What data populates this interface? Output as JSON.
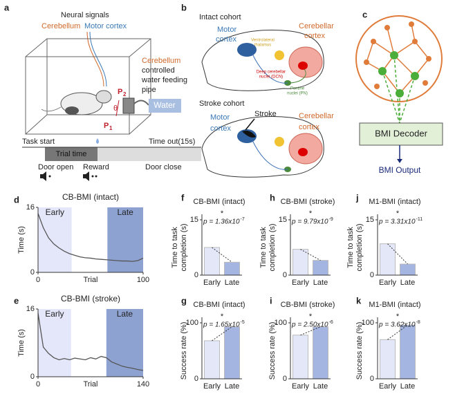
{
  "panels": {
    "a": {
      "label": "a",
      "neural_signals": "Neural signals",
      "cerebellum": "Cerebellum",
      "motor_cortex": "Motor cortex",
      "pipe_lines": [
        "Cerebellum",
        "controlled",
        "water feeding",
        "pipe"
      ],
      "p2": "P",
      "p2_sub": "2",
      "theta": "θ",
      "p1": "P",
      "p1_sub": "1",
      "water": "Water",
      "task_start": "Task start",
      "trial_time": "Trial time",
      "time_out": "Time out(15s)",
      "door_open": "Door open",
      "reward": "Reward",
      "door_close": "Door close"
    },
    "b": {
      "label": "b",
      "intact": "Intact cohort",
      "motor": [
        "Motor",
        "cortex"
      ],
      "cerebellar": [
        "Cerebellar",
        "cortex"
      ],
      "thalamus": [
        "Ventrolateral",
        "thalamus"
      ],
      "dcn": [
        "Deep cerebellar",
        "nuclei (DCN)"
      ],
      "pn": [
        "Pontine",
        "nuclei (PN)"
      ],
      "stroke_cohort": "Stroke cohort",
      "motor2": [
        "Motor",
        "cortex"
      ],
      "stroke": "Stroke",
      "cerebellar2": [
        "Cerebellar",
        "cortex"
      ]
    },
    "c": {
      "label": "c",
      "decoder": "BMI Decoder",
      "output": "BMI Output"
    }
  },
  "chart_data": [
    {
      "panel": "d",
      "type": "line",
      "title": "CB-BMI (intact)",
      "x_label": "Trial",
      "y_label": "Time (s)",
      "color": "#555555",
      "x": [
        0,
        5,
        10,
        15,
        20,
        25,
        30,
        35,
        40,
        45,
        50,
        55,
        60,
        65,
        70,
        75,
        80,
        85,
        90,
        95,
        100
      ],
      "values": [
        14.5,
        11,
        8.5,
        7,
        6,
        5.2,
        4.6,
        4.2,
        3.8,
        3.6,
        3.5,
        3.3,
        3.2,
        3.1,
        3.0,
        2.9,
        2.8,
        2.8,
        2.7,
        2.9,
        3.5
      ],
      "xlim": [
        0,
        100
      ],
      "xticks": [
        0,
        100
      ],
      "ylim": [
        0,
        16
      ],
      "yticks": [
        0,
        16
      ],
      "regions": [
        {
          "name": "Early",
          "range": [
            0,
            32
          ],
          "color": "#e4e7fa"
        },
        {
          "name": "Late",
          "range": [
            66,
            100
          ],
          "color": "#8ea2d2"
        }
      ]
    },
    {
      "panel": "e",
      "type": "line",
      "title": "CB-BMI (stroke)",
      "x_label": "Trial",
      "y_label": "Time (s)",
      "color": "#555555",
      "x": [
        0,
        7,
        14,
        21,
        28,
        35,
        42,
        49,
        56,
        63,
        70,
        77,
        84,
        91,
        98,
        105,
        112,
        119,
        126,
        133,
        140
      ],
      "values": [
        15,
        7,
        5.5,
        4.5,
        4,
        4.3,
        4.0,
        4.4,
        4.2,
        4.0,
        4.5,
        4.2,
        4.8,
        4.5,
        3.5,
        3.0,
        2.5,
        2.2,
        2.0,
        1.7,
        1.5
      ],
      "xlim": [
        0,
        140
      ],
      "xticks": [
        0,
        140
      ],
      "ylim": [
        0,
        16
      ],
      "yticks": [
        0,
        16
      ],
      "regions": [
        {
          "name": "Early",
          "range": [
            0,
            44
          ],
          "color": "#e4e7fa"
        },
        {
          "name": "Late",
          "range": [
            91,
            140
          ],
          "color": "#8ea2d2"
        }
      ]
    },
    {
      "panel": "f",
      "type": "bar",
      "title": "CB-BMI (intact)",
      "y_label": [
        "Time to task",
        "completion (s)"
      ],
      "categories": [
        "Early",
        "Late"
      ],
      "values": [
        7.5,
        3.5
      ],
      "colors": [
        "#e4e7f8",
        "#a3b5e0"
      ],
      "ylim": [
        0,
        15
      ],
      "yticks": [
        0,
        15
      ],
      "annotation": {
        "star": "*",
        "p": "p = 1.36x10",
        "exponent": "-7"
      }
    },
    {
      "panel": "g",
      "type": "bar",
      "title": "CB-BMI (intact)",
      "y_label": [
        "Success rate (%)"
      ],
      "categories": [
        "Early",
        "Late"
      ],
      "values": [
        68,
        93
      ],
      "colors": [
        "#e4e7f8",
        "#a3b5e0"
      ],
      "ylim": [
        0,
        100
      ],
      "yticks": [
        0,
        100
      ],
      "annotation": {
        "star": "*",
        "p": "p = 1.65x10",
        "exponent": "-5"
      }
    },
    {
      "panel": "h",
      "type": "bar",
      "title": "CB-BMI (stroke)",
      "y_label": [
        "Time to task",
        "completion (s)"
      ],
      "categories": [
        "Early",
        "Late"
      ],
      "values": [
        7,
        4
      ],
      "colors": [
        "#e4e7f8",
        "#a3b5e0"
      ],
      "ylim": [
        0,
        15
      ],
      "yticks": [
        0,
        15
      ],
      "annotation": {
        "star": "*",
        "p": "p = 9.79x10",
        "exponent": "-9"
      }
    },
    {
      "panel": "i",
      "type": "bar",
      "title": "CB-BMI (stroke)",
      "y_label": [
        "Success rate (%)"
      ],
      "categories": [
        "Early",
        "Late"
      ],
      "values": [
        78,
        93
      ],
      "colors": [
        "#e4e7f8",
        "#a3b5e0"
      ],
      "ylim": [
        0,
        100
      ],
      "yticks": [
        0,
        100
      ],
      "annotation": {
        "star": "*",
        "p": "p = 2.50x10",
        "exponent": "-6"
      }
    },
    {
      "panel": "j",
      "type": "bar",
      "title": "M1-BMI (intact)",
      "y_label": [
        "Time to task",
        "completion (s)"
      ],
      "categories": [
        "Early",
        "Late"
      ],
      "values": [
        8.5,
        3
      ],
      "colors": [
        "#e4e7f8",
        "#a3b5e0"
      ],
      "ylim": [
        0,
        15
      ],
      "yticks": [
        0,
        15
      ],
      "annotation": {
        "star": "*",
        "p": "p = 3.31x10",
        "exponent": "-11"
      }
    },
    {
      "panel": "k",
      "type": "bar",
      "title": "M1-BMI (intact)",
      "y_label": [
        "Success rate (%)"
      ],
      "categories": [
        "Early",
        "Late"
      ],
      "values": [
        70,
        96
      ],
      "colors": [
        "#e4e7f8",
        "#a3b5e0"
      ],
      "ylim": [
        0,
        100
      ],
      "yticks": [
        0,
        100
      ],
      "annotation": {
        "star": "*",
        "p": "p = 3.62x10",
        "exponent": "-8"
      }
    }
  ]
}
